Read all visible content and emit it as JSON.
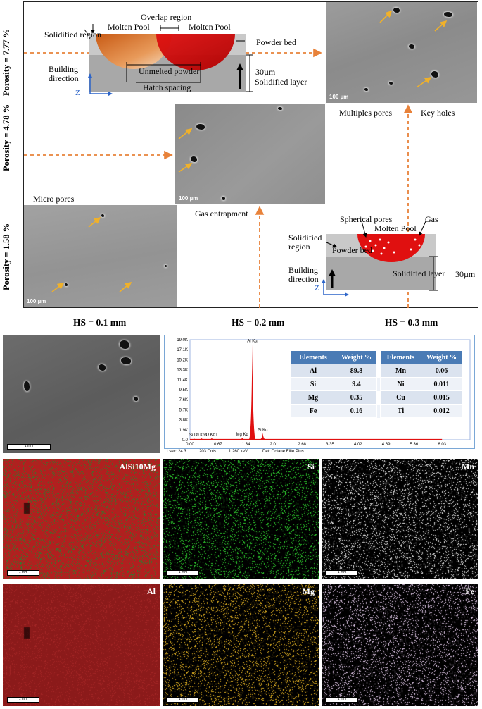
{
  "porosity_labels": [
    "Porosity = 7.77 %",
    "Porosity = 4.78 %",
    "Porosity = 1.58 %"
  ],
  "hatch_labels": [
    "HS = 0.1 mm",
    "HS = 0.2 mm",
    "HS = 0.3 mm"
  ],
  "scale_100": "100 µm",
  "scale_1mm": "1 mm",
  "top_schematic": {
    "solidified_region": "Solidified region",
    "molten_pool_left": "Molten Pool",
    "overlap_region": "Overlap region",
    "molten_pool_right": "Molten Pool",
    "powder_bed": "Powder bed",
    "building_direction": "Building direction",
    "unmelted_powder": "Unmelted powder",
    "hatch_spacing": "Hatch spacing",
    "layer_thickness": "30µm",
    "solidified_layer": "Solidified layer",
    "axis_z": "Z"
  },
  "bottom_schematic": {
    "spherical_pores": "Spherical pores",
    "gas": "Gas",
    "molten_pool": "Molten Pool",
    "solidified_region": "Solidified region",
    "powder_bed": "Powder bed",
    "building_direction": "Building direction",
    "solidified_layer": "Solidified layer",
    "layer_thickness": "30µm",
    "axis_z": "Z"
  },
  "annotations": {
    "multiples_pores": "Multiples pores",
    "key_holes": "Key holes",
    "micro_pores": "Micro pores",
    "gas_entrapment": "Gas entrapment"
  },
  "colors": {
    "arrow_orange": "#e8823a",
    "pool_red": "#e01010",
    "pool_orange": "#e0782a",
    "al_map": "#8b1a1a",
    "si_map": "#22cc22",
    "mg_map": "#e6b422"
  },
  "chart_data": {
    "type": "bar",
    "title": "",
    "xlabel": "",
    "ylabel": "",
    "x_ticks": [
      "0.00",
      "0.67",
      "1.34",
      "2.01",
      "2.68",
      "3.35",
      "4.02",
      "4.69",
      "5.36",
      "6.03"
    ],
    "y_ticks": [
      "0.0",
      "1.9K",
      "3.8K",
      "5.7K",
      "7.6K",
      "9.5K",
      "11.4K",
      "13.3K",
      "15.2K",
      "17.1K",
      "19.0K"
    ],
    "xlim": [
      0,
      6.7
    ],
    "ylim": [
      0,
      19000
    ],
    "peaks": [
      {
        "label": "C Kα1",
        "x": 0.28,
        "y": 300
      },
      {
        "label": "Si Lα",
        "x": 0.1,
        "y": 250
      },
      {
        "label": "O Kα1",
        "x": 0.52,
        "y": 350
      },
      {
        "label": "Mg Kα",
        "x": 1.25,
        "y": 400
      },
      {
        "label": "Al Kα",
        "x": 1.49,
        "y": 18100
      },
      {
        "label": "Si Kα",
        "x": 1.74,
        "y": 1300
      }
    ],
    "footer": [
      "Lsec: 24.3",
      "203 Cnts",
      "1.260 keV",
      "Det: Octane Elite Plus"
    ]
  },
  "eds_table": {
    "headers": [
      "Elements",
      "Weight %",
      "Elements",
      "Weight %"
    ],
    "rows": [
      [
        "Al",
        "89.8",
        "Mn",
        "0.06"
      ],
      [
        "Si",
        "9.4",
        "Ni",
        "0.011"
      ],
      [
        "Mg",
        "0.35",
        "Cu",
        "0.015"
      ],
      [
        "Fe",
        "0.16",
        "Ti",
        "0.012"
      ]
    ]
  },
  "maps": [
    {
      "label": "AlSi10Mg",
      "color": "#b21f1f",
      "dot": "#2e7d2e"
    },
    {
      "label": "Si",
      "color": "#000000",
      "dot": "#2fd12f"
    },
    {
      "label": "Mn",
      "color": "#000000",
      "dot": "#e8e8e8"
    },
    {
      "label": "Al",
      "color": "#8b1a1a",
      "dot": "#a52626"
    },
    {
      "label": "Mg",
      "color": "#000000",
      "dot": "#e6b422"
    },
    {
      "label": "Fe",
      "color": "#000000",
      "dot": "#e0c8e8"
    }
  ]
}
